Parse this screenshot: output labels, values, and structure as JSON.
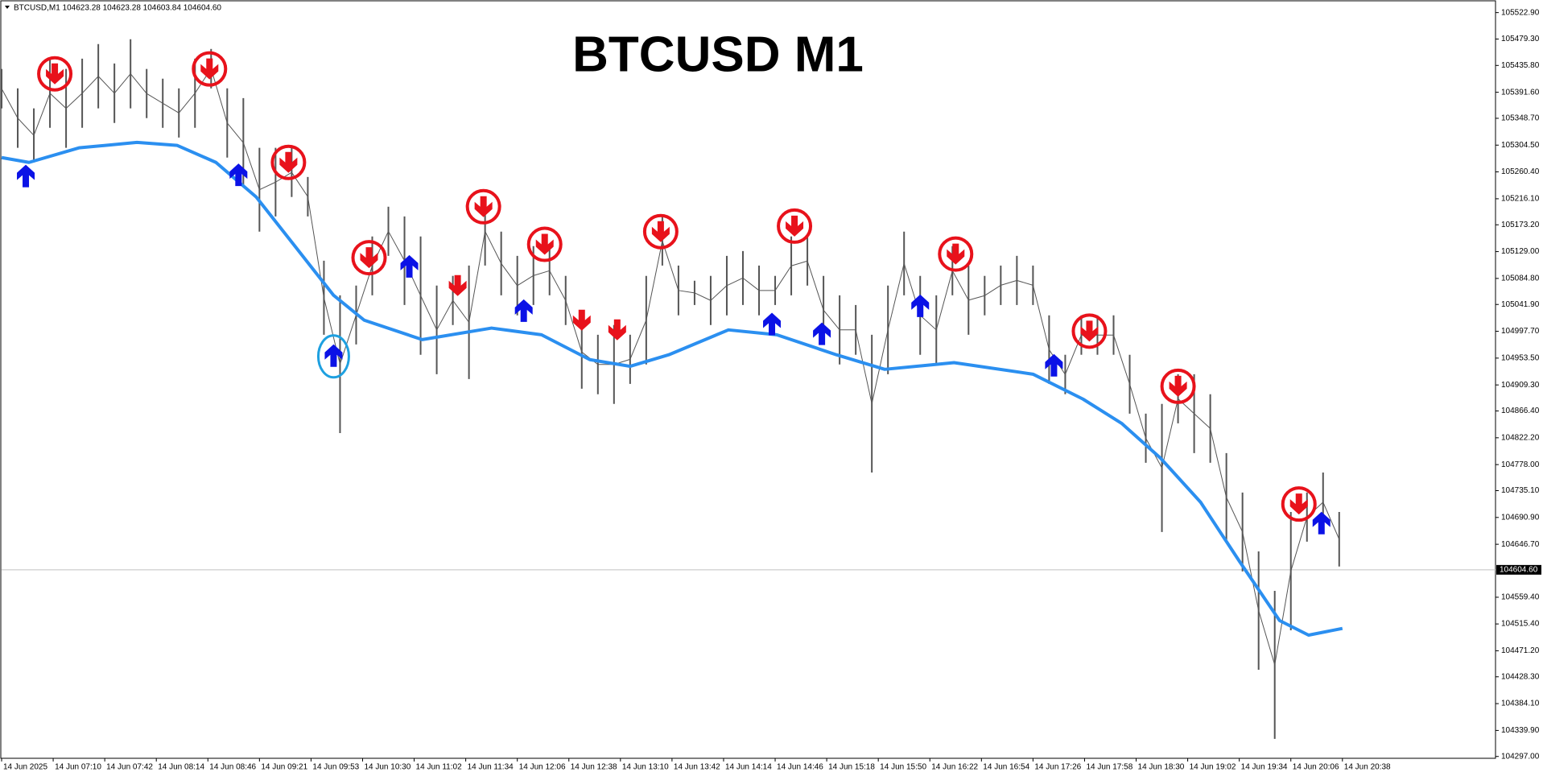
{
  "chart_data": {
    "type": "ohlc",
    "header": "BTCUSD,M1  104623.28 104623.28 104603.84 104604.60",
    "title": "BTCUSD M1",
    "bar_color": "#555555",
    "x": [
      0,
      10,
      20,
      30,
      40,
      50,
      60,
      70,
      80,
      90,
      100,
      110,
      120,
      130,
      140,
      150,
      160,
      170,
      180,
      190,
      200,
      210,
      220,
      230,
      240,
      250,
      260,
      270,
      280,
      290,
      300,
      310,
      320,
      330,
      340,
      350,
      360,
      370,
      380,
      390,
      400,
      410,
      420,
      430,
      440,
      450,
      460,
      470,
      480,
      490,
      500,
      510,
      520,
      530,
      540,
      550,
      560,
      570,
      580,
      590,
      600,
      610,
      620,
      630,
      640,
      650,
      660,
      670,
      680,
      690,
      700,
      710,
      720,
      730,
      740,
      750,
      760,
      770,
      780,
      790,
      800,
      810,
      820,
      830
    ],
    "high": [
      105430,
      105398,
      105365,
      105447,
      105430,
      105447,
      105471,
      105439,
      105479,
      105430,
      105414,
      105398,
      105447,
      105463,
      105398,
      105382,
      105300,
      105300,
      105300,
      105252,
      105114,
      105057,
      105073,
      105154,
      105203,
      105187,
      105154,
      105073,
      105089,
      105106,
      105219,
      105162,
      105122,
      105138,
      105138,
      105089,
      105024,
      104992,
      105008,
      104992,
      105089,
      105187,
      105106,
      105081,
      105089,
      105122,
      105130,
      105106,
      105089,
      105154,
      105154,
      105089,
      105057,
      105041,
      104992,
      105073,
      105162,
      105089,
      105057,
      105138,
      105106,
      105089,
      105106,
      105122,
      105106,
      105024,
      104959,
      105024,
      105024,
      105024,
      104959,
      104862,
      104878,
      104927,
      104927,
      104894,
      104797,
      104732,
      104635,
      104570,
      104700,
      104732,
      104765,
      104700
    ],
    "low": [
      105365,
      105300,
      105276,
      105333,
      105300,
      105333,
      105365,
      105341,
      105365,
      105349,
      105333,
      105317,
      105333,
      105398,
      105284,
      105235,
      105162,
      105187,
      105219,
      105187,
      104992,
      104830,
      104976,
      105057,
      105122,
      105041,
      104959,
      104927,
      105008,
      104919,
      105106,
      105057,
      105024,
      105041,
      105057,
      105008,
      104903,
      104894,
      104878,
      104911,
      104943,
      105106,
      105024,
      105041,
      105008,
      105024,
      105041,
      105024,
      105041,
      105057,
      105073,
      104976,
      104943,
      104959,
      104765,
      104927,
      105057,
      104959,
      104943,
      105057,
      104992,
      105024,
      105041,
      105041,
      105041,
      104911,
      104894,
      104959,
      104959,
      104959,
      104862,
      104781,
      104667,
      104846,
      104797,
      104781,
      104651,
      104602,
      104440,
      104326,
      104505,
      104651,
      104667,
      104610
    ],
    "ma": {
      "color": "#2b8ff0",
      "x": [
        0,
        17,
        48,
        84,
        109,
        133,
        158,
        182,
        206,
        225,
        261,
        304,
        335,
        365,
        390,
        414,
        451,
        481,
        518,
        548,
        591,
        640,
        671,
        695,
        719,
        744,
        768,
        793,
        811,
        832
      ],
      "values": [
        105284,
        105276,
        105300,
        105309,
        105304,
        105276,
        105219,
        105138,
        105057,
        105016,
        104984,
        105003,
        104992,
        104951,
        104940,
        104959,
        105000,
        104992,
        104959,
        104935,
        104946,
        104927,
        104886,
        104846,
        104789,
        104716,
        104619,
        104521,
        104497,
        104508
      ]
    },
    "sell_signals": {
      "color": "#e8121b",
      "x": [
        33,
        129,
        178,
        228,
        299,
        283,
        337,
        360,
        382,
        409,
        492,
        592,
        675,
        730,
        805
      ],
      "y": [
        105422,
        105430,
        105276,
        105119,
        105203,
        105073,
        105141,
        105016,
        105000,
        105162,
        105171,
        105125,
        104998,
        104907,
        104713
      ],
      "circled": [
        true,
        true,
        true,
        true,
        true,
        false,
        true,
        false,
        false,
        true,
        true,
        true,
        true,
        true,
        true
      ]
    },
    "buy_signals": {
      "color": "#0b12e6",
      "x": [
        15,
        147,
        206,
        253,
        324,
        478,
        509,
        570,
        653,
        819
      ],
      "y": [
        105255,
        105257,
        104959,
        105106,
        105033,
        105011,
        104995,
        105041,
        104943,
        104683
      ],
      "highlight": 2,
      "highlight_color": "#1ea0e0"
    },
    "last_price": {
      "value": 104604.6,
      "label": "104604.60"
    },
    "xlim": [
      0,
      927
    ],
    "ylim": [
      104294,
      105541
    ],
    "xticks": [
      {
        "value": 0,
        "label": "14 Jun 2025"
      },
      {
        "value": 32,
        "label": "14 Jun 07:10"
      },
      {
        "value": 64,
        "label": "14 Jun 07:42"
      },
      {
        "value": 96,
        "label": "14 Jun 08:14"
      },
      {
        "value": 128,
        "label": "14 Jun 08:46"
      },
      {
        "value": 160,
        "label": "14 Jun 09:21"
      },
      {
        "value": 192,
        "label": "14 Jun 09:53"
      },
      {
        "value": 224,
        "label": "14 Jun 10:30"
      },
      {
        "value": 256,
        "label": "14 Jun 11:02"
      },
      {
        "value": 288,
        "label": "14 Jun 11:34"
      },
      {
        "value": 320,
        "label": "14 Jun 12:06"
      },
      {
        "value": 352,
        "label": "14 Jun 12:38"
      },
      {
        "value": 384,
        "label": "14 Jun 13:10"
      },
      {
        "value": 416,
        "label": "14 Jun 13:42"
      },
      {
        "value": 448,
        "label": "14 Jun 14:14"
      },
      {
        "value": 480,
        "label": "14 Jun 14:46"
      },
      {
        "value": 512,
        "label": "14 Jun 15:18"
      },
      {
        "value": 544,
        "label": "14 Jun 15:50"
      },
      {
        "value": 576,
        "label": "14 Jun 16:22"
      },
      {
        "value": 608,
        "label": "14 Jun 16:54"
      },
      {
        "value": 640,
        "label": "14 Jun 17:26"
      },
      {
        "value": 672,
        "label": "14 Jun 17:58"
      },
      {
        "value": 704,
        "label": "14 Jun 18:30"
      },
      {
        "value": 736,
        "label": "14 Jun 19:02"
      },
      {
        "value": 768,
        "label": "14 Jun 19:34"
      },
      {
        "value": 800,
        "label": "14 Jun 20:06"
      },
      {
        "value": 832,
        "label": "14 Jun 20:38"
      }
    ],
    "yticks": [
      {
        "value": 105522.9,
        "label": "105522.90"
      },
      {
        "value": 105479.3,
        "label": "105479.30"
      },
      {
        "value": 105435.8,
        "label": "105435.80"
      },
      {
        "value": 105391.6,
        "label": "105391.60"
      },
      {
        "value": 105348.7,
        "label": "105348.70"
      },
      {
        "value": 105304.5,
        "label": "105304.50"
      },
      {
        "value": 105260.4,
        "label": "105260.40"
      },
      {
        "value": 105216.1,
        "label": "105216.10"
      },
      {
        "value": 105173.2,
        "label": "105173.20"
      },
      {
        "value": 105129,
        "label": "105129.00"
      },
      {
        "value": 105084.8,
        "label": "105084.80"
      },
      {
        "value": 105041.9,
        "label": "105041.90"
      },
      {
        "value": 104997.7,
        "label": "104997.70"
      },
      {
        "value": 104953.5,
        "label": "104953.50"
      },
      {
        "value": 104909.3,
        "label": "104909.30"
      },
      {
        "value": 104866.4,
        "label": "104866.40"
      },
      {
        "value": 104822.2,
        "label": "104822.20"
      },
      {
        "value": 104778,
        "label": "104778.00"
      },
      {
        "value": 104735.1,
        "label": "104735.10"
      },
      {
        "value": 104690.9,
        "label": "104690.90"
      },
      {
        "value": 104646.7,
        "label": "104646.70"
      },
      {
        "value": 104559.4,
        "label": "104559.40"
      },
      {
        "value": 104515.4,
        "label": "104515.40"
      },
      {
        "value": 104471.2,
        "label": "104471.20"
      },
      {
        "value": 104428.3,
        "label": "104428.30"
      },
      {
        "value": 104384.1,
        "label": "104384.10"
      },
      {
        "value": 104339.9,
        "label": "104339.90"
      },
      {
        "value": 104297,
        "label": "104297.00"
      }
    ]
  }
}
